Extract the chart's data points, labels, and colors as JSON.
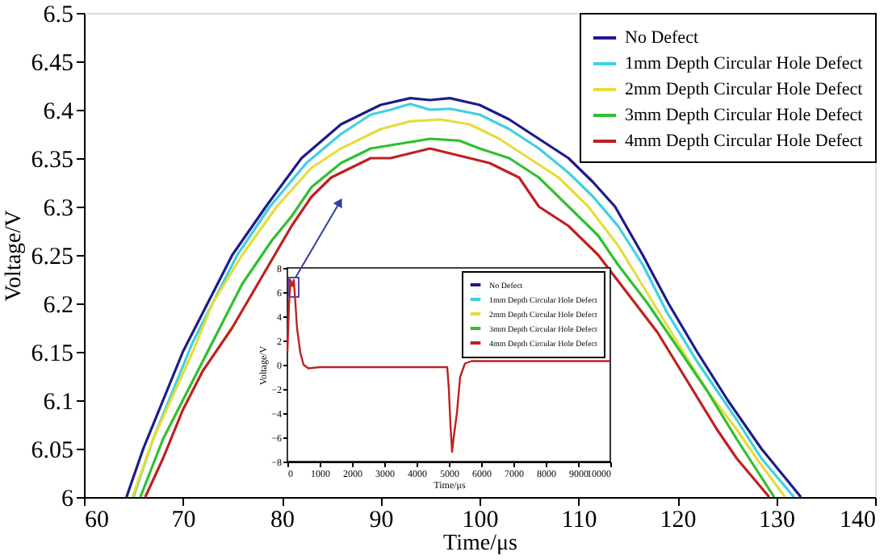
{
  "chart_data": [
    {
      "type": "line",
      "xlabel": "Time/μs",
      "ylabel": "Voltage/V",
      "xlim": [
        60,
        140
      ],
      "ylim": [
        6,
        6.5
      ],
      "xticks": [
        60,
        70,
        80,
        90,
        100,
        110,
        120,
        130,
        140
      ],
      "yticks": [
        6,
        6.05,
        6.1,
        6.15,
        6.2,
        6.25,
        6.3,
        6.35,
        6.4,
        6.45,
        6.5
      ],
      "grid": false,
      "legend": "top right",
      "series": [
        {
          "name": "No Defect",
          "color": "#1c1c8a",
          "x": [
            64.3,
            66,
            68,
            70,
            72.5,
            75,
            78.4,
            82,
            86,
            90,
            93,
            95,
            97,
            100,
            103,
            106,
            109,
            111.5,
            113.7,
            116.5,
            119.1,
            122,
            125.1,
            128.5,
            132.5
          ],
          "values": [
            6.0,
            6.05,
            6.1,
            6.15,
            6.2,
            6.25,
            6.3,
            6.35,
            6.385,
            6.405,
            6.412,
            6.41,
            6.412,
            6.405,
            6.39,
            6.37,
            6.35,
            6.325,
            6.3,
            6.25,
            6.2,
            6.15,
            6.1,
            6.05,
            6.0
          ]
        },
        {
          "name": "1mm Depth Circular Hole Defect",
          "color": "#40d0e0",
          "x": [
            65.0,
            67,
            69,
            71,
            73,
            75.5,
            78.8,
            82.5,
            86,
            89,
            91,
            93,
            95,
            97,
            100,
            103,
            106,
            109,
            111.5,
            114,
            116.5,
            119,
            122,
            124,
            126,
            128.5,
            131.8
          ],
          "values": [
            6.0,
            6.06,
            6.11,
            6.16,
            6.2,
            6.25,
            6.3,
            6.345,
            6.375,
            6.395,
            6.4,
            6.406,
            6.4,
            6.401,
            6.395,
            6.38,
            6.36,
            6.335,
            6.31,
            6.28,
            6.24,
            6.19,
            6.14,
            6.11,
            6.08,
            6.04,
            6.0
          ]
        },
        {
          "name": "2mm Depth Circular Hole Defect",
          "color": "#e6dc3c",
          "x": [
            64.9,
            67,
            69,
            71,
            73,
            76,
            79.5,
            83,
            86,
            90,
            93,
            96,
            99,
            102,
            105,
            108,
            111,
            114,
            117,
            120,
            123,
            126,
            128,
            130.9
          ],
          "values": [
            6.0,
            6.06,
            6.105,
            6.15,
            6.2,
            6.25,
            6.3,
            6.34,
            6.36,
            6.38,
            6.388,
            6.39,
            6.385,
            6.37,
            6.35,
            6.33,
            6.3,
            6.26,
            6.21,
            6.16,
            6.11,
            6.07,
            6.04,
            6.0
          ]
        },
        {
          "name": "3mm Depth Circular Hole Defect",
          "color": "#30c030",
          "x": [
            65.7,
            68,
            70,
            72,
            74,
            76,
            79,
            81,
            83,
            86,
            89,
            92,
            95,
            98,
            100,
            103,
            106,
            109,
            112,
            114,
            117,
            120,
            123,
            126,
            129.8
          ],
          "values": [
            6.0,
            6.06,
            6.1,
            6.14,
            6.18,
            6.22,
            6.265,
            6.29,
            6.32,
            6.345,
            6.36,
            6.365,
            6.37,
            6.368,
            6.36,
            6.35,
            6.33,
            6.3,
            6.27,
            6.24,
            6.2,
            6.155,
            6.11,
            6.06,
            6.0
          ]
        },
        {
          "name": "4mm Depth Circular Hole Defect",
          "color": "#c02020",
          "x": [
            66.2,
            68,
            70,
            72,
            75,
            77,
            79,
            81,
            83,
            85,
            87,
            89,
            91,
            93,
            95,
            97,
            99,
            101,
            104,
            106,
            109,
            112,
            115,
            118,
            121,
            124,
            126,
            129.3
          ],
          "values": [
            6.0,
            6.04,
            6.09,
            6.13,
            6.175,
            6.21,
            6.245,
            6.28,
            6.31,
            6.33,
            6.34,
            6.35,
            6.35,
            6.355,
            6.36,
            6.355,
            6.35,
            6.345,
            6.33,
            6.3,
            6.28,
            6.25,
            6.21,
            6.17,
            6.12,
            6.07,
            6.04,
            6.0
          ]
        }
      ]
    },
    {
      "type": "line",
      "xlabel": "Time/μs",
      "ylabel": "Voltage/V",
      "xlim": [
        0,
        10000
      ],
      "ylim": [
        -8,
        8
      ],
      "xticks": [
        0,
        1000,
        2000,
        3000,
        4000,
        5000,
        6000,
        7000,
        8000,
        9000,
        10000
      ],
      "yticks": [
        -8,
        -6,
        -4,
        -2,
        0,
        2,
        4,
        6,
        8
      ],
      "grid": false,
      "legend": "top right",
      "series": [
        {
          "name": "No Defect",
          "color": "#1c1c8a"
        },
        {
          "name": "1mm Depth Circular Hole Defect",
          "color": "#40d0e0"
        },
        {
          "name": "2mm Depth Circular Hole Defect",
          "color": "#e6dc3c"
        },
        {
          "name": "3mm Depth Circular Hole Defect",
          "color": "#30c030"
        },
        {
          "name": "4mm Depth Circular Hole Defect",
          "color": "#c02020",
          "x": [
            0,
            50,
            100,
            150,
            200,
            300,
            400,
            500,
            650,
            1000,
            3000,
            4950,
            5000,
            5050,
            5100,
            5150,
            5250,
            5350,
            5500,
            5700,
            10000
          ],
          "values": [
            1,
            5,
            7,
            6.5,
            7,
            3,
            1,
            0,
            -0.3,
            -0.2,
            -0.2,
            -0.2,
            -2,
            -5,
            -7.2,
            -6,
            -4,
            -1,
            0.1,
            0.3,
            0.3
          ]
        }
      ]
    }
  ]
}
